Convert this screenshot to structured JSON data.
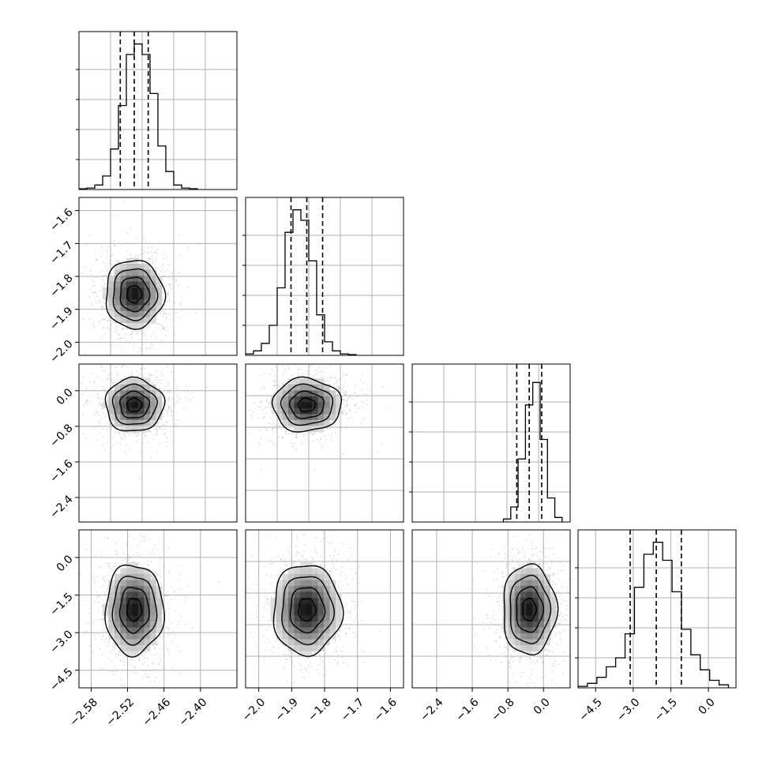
{
  "chart_data": {
    "type": "corner",
    "grid": true,
    "panels": [
      {
        "row": 0,
        "col": 0,
        "type": "histogram",
        "xlim": [
          -2.6,
          -2.34
        ],
        "x_axis_tick_labels": [],
        "y_axis_tick_labels": [],
        "bins": [
          -2.6,
          -2.587,
          -2.574,
          -2.561,
          -2.548,
          -2.535,
          -2.522,
          -2.509,
          -2.496,
          -2.483,
          -2.47,
          -2.457,
          -2.444,
          -2.431,
          -2.418,
          -2.405
        ],
        "counts": [
          0.5,
          1,
          3,
          9,
          27,
          56,
          90,
          97,
          90,
          64,
          29,
          12,
          3,
          1,
          0.5
        ],
        "quantiles": [
          -2.532,
          -2.509,
          -2.486
        ],
        "ymax": 100
      },
      {
        "row": 1,
        "col": 0,
        "type": "contour",
        "xlim": [
          -2.6,
          -2.34
        ],
        "ylim": [
          -2.04,
          -1.56
        ],
        "center": [
          -2.509,
          -1.854
        ],
        "sigma": [
          0.024,
          0.052
        ],
        "x_axis_tick_labels": [],
        "y_axis_ticks": [
          -2.0,
          -1.9,
          -1.8,
          -1.7,
          -1.6
        ],
        "y_axis_tick_labels": [
          "−2.0",
          "−1.9",
          "−1.8",
          "−1.7",
          "−1.6"
        ]
      },
      {
        "row": 1,
        "col": 1,
        "type": "histogram",
        "xlim": [
          -2.04,
          -1.56
        ],
        "x_axis_tick_labels": [],
        "y_axis_tick_labels": [],
        "bins": [
          -2.04,
          -2.016,
          -1.992,
          -1.968,
          -1.944,
          -1.92,
          -1.896,
          -1.872,
          -1.848,
          -1.824,
          -1.8,
          -1.776,
          -1.752,
          -1.728,
          -1.704
        ],
        "counts": [
          1,
          3,
          8,
          20,
          45,
          82,
          97,
          90,
          63,
          27,
          9,
          3,
          1,
          0.5
        ],
        "quantiles": [
          -1.902,
          -1.854,
          -1.806
        ],
        "ymax": 100
      },
      {
        "row": 2,
        "col": 0,
        "type": "contour",
        "xlim": [
          -2.6,
          -2.34
        ],
        "ylim": [
          -2.95,
          0.6
        ],
        "center": [
          -2.509,
          -0.32
        ],
        "sigma": [
          0.024,
          0.3
        ],
        "x_axis_tick_labels": [],
        "y_axis_ticks": [
          -2.4,
          -1.6,
          -0.8,
          0.0
        ],
        "y_axis_tick_labels": [
          "−2.4",
          "−1.6",
          "−0.8",
          "0.0"
        ]
      },
      {
        "row": 2,
        "col": 1,
        "type": "contour",
        "xlim": [
          -2.04,
          -1.56
        ],
        "ylim": [
          -2.95,
          0.6
        ],
        "center": [
          -1.854,
          -0.32
        ],
        "sigma": [
          0.052,
          0.3
        ],
        "x_axis_tick_labels": [],
        "y_axis_tick_labels": []
      },
      {
        "row": 2,
        "col": 2,
        "type": "histogram",
        "xlim": [
          -2.95,
          0.6
        ],
        "x_axis_tick_labels": [],
        "y_axis_tick_labels": [],
        "bins": [
          -0.9,
          -0.735,
          -0.57,
          -0.405,
          -0.24,
          -0.075,
          0.09,
          0.255,
          0.42
        ],
        "counts": [
          2,
          10,
          42,
          78,
          93,
          55,
          16,
          3
        ],
        "quantiles": [
          -0.6,
          -0.32,
          -0.04
        ],
        "ymax": 100
      },
      {
        "row": 3,
        "col": 0,
        "type": "contour",
        "xlim": [
          -2.6,
          -2.34
        ],
        "ylim": [
          -5.2,
          1.1
        ],
        "center": [
          -2.509,
          -2.08
        ],
        "sigma": [
          0.024,
          0.9
        ],
        "x_axis_ticks": [
          -2.58,
          -2.52,
          -2.46,
          -2.4
        ],
        "x_axis_tick_labels": [
          "−2.58",
          "−2.52",
          "−2.46",
          "−2.40"
        ],
        "y_axis_ticks": [
          -4.5,
          -3.0,
          -1.5,
          0.0
        ],
        "y_axis_tick_labels": [
          "−4.5",
          "−3.0",
          "−1.5",
          "0.0"
        ]
      },
      {
        "row": 3,
        "col": 1,
        "type": "contour",
        "xlim": [
          -2.04,
          -1.56
        ],
        "ylim": [
          -5.2,
          1.1
        ],
        "center": [
          -1.854,
          -2.08
        ],
        "sigma": [
          0.052,
          0.9
        ],
        "x_axis_ticks": [
          -2.0,
          -1.9,
          -1.8,
          -1.7,
          -1.6
        ],
        "x_axis_tick_labels": [
          "−2.0",
          "−1.9",
          "−1.8",
          "−1.7",
          "−1.6"
        ],
        "y_axis_tick_labels": []
      },
      {
        "row": 3,
        "col": 2,
        "type": "contour",
        "xlim": [
          -2.95,
          0.6
        ],
        "ylim": [
          -5.2,
          1.1
        ],
        "center": [
          -0.32,
          -2.08
        ],
        "sigma": [
          0.3,
          0.9
        ],
        "x_axis_ticks": [
          -2.4,
          -1.6,
          -0.8,
          0.0
        ],
        "x_axis_tick_labels": [
          "−2.4",
          "−1.6",
          "−0.8",
          "0.0"
        ],
        "y_axis_tick_labels": []
      },
      {
        "row": 3,
        "col": 3,
        "type": "histogram",
        "xlim": [
          -5.2,
          1.1
        ],
        "x_axis_ticks": [
          -4.5,
          -3.0,
          -1.5,
          0.0
        ],
        "x_axis_tick_labels": [
          "−4.5",
          "−3.0",
          "−1.5",
          "0.0"
        ],
        "y_axis_tick_labels": [],
        "bins": [
          -5.2,
          -4.825,
          -4.45,
          -4.075,
          -3.7,
          -3.325,
          -2.95,
          -2.575,
          -2.2,
          -1.825,
          -1.45,
          -1.075,
          -0.7,
          -0.325,
          0.05,
          0.425,
          0.8
        ],
        "counts": [
          1,
          3,
          7,
          14,
          20,
          36,
          67,
          89,
          97,
          85,
          64,
          39,
          22,
          12,
          5,
          2
        ],
        "quantiles": [
          -3.12,
          -2.08,
          -1.08
        ],
        "ymax": 100
      }
    ],
    "contour_levels": [
      0.5,
      1.0,
      1.5,
      2.0
    ]
  }
}
